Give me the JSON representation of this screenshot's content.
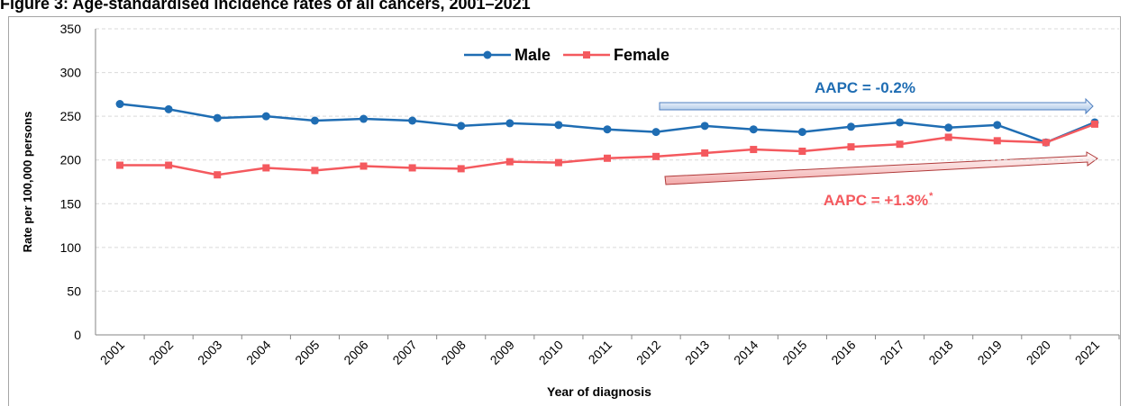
{
  "chart_data": {
    "type": "line",
    "title": "Figure 3: Age-standardised incidence rates of all cancers, 2001–2021",
    "x_label": "Year of diagnosis",
    "y_label": "Rate per 100,000 persons",
    "categories": [
      "2001",
      "2002",
      "2003",
      "2004",
      "2005",
      "2006",
      "2007",
      "2008",
      "2009",
      "2010",
      "2011",
      "2012",
      "2013",
      "2014",
      "2015",
      "2016",
      "2017",
      "2018",
      "2019",
      "2020",
      "2021"
    ],
    "series": [
      {
        "name": "Male",
        "color": "#1f6db3",
        "marker": "circle",
        "values": [
          264,
          258,
          248,
          250,
          245,
          247,
          245,
          239,
          242,
          240,
          235,
          232,
          239,
          235,
          232,
          238,
          243,
          237,
          240,
          220,
          243
        ]
      },
      {
        "name": "Female",
        "color": "#f4595e",
        "marker": "square",
        "values": [
          194,
          194,
          183,
          191,
          188,
          193,
          191,
          190,
          198,
          197,
          202,
          204,
          208,
          212,
          210,
          215,
          218,
          226,
          222,
          220,
          241
        ]
      }
    ],
    "annotations": [
      {
        "text": "AAPC = -0.2%",
        "color": "#1f6db3"
      },
      {
        "text": "AAPC = +1.3%",
        "superscript": "*",
        "color": "#f4595e"
      }
    ],
    "ylim": [
      0,
      350
    ],
    "yticks": [
      0,
      50,
      100,
      150,
      200,
      250,
      300,
      350
    ],
    "grid": true,
    "legend": "top"
  }
}
